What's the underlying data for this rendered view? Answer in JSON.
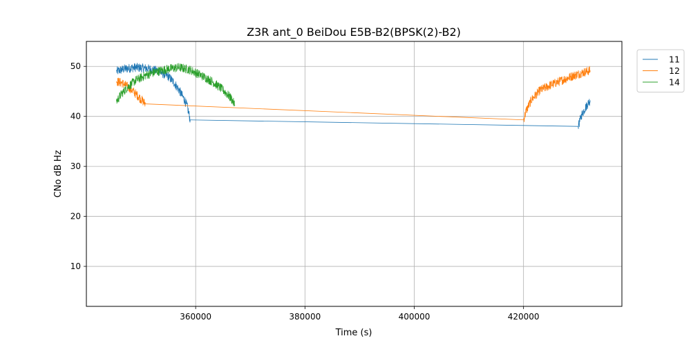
{
  "chart_data": {
    "type": "line",
    "title": "Z3R ant_0 BeiDou E5B-B2(BPSK(2)-B2)",
    "xlabel": "Time (s)",
    "ylabel": "CNo dB Hz",
    "xlim": [
      340000,
      438000
    ],
    "ylim": [
      2,
      55
    ],
    "xticks": [
      360000,
      380000,
      400000,
      420000
    ],
    "yticks": [
      10,
      20,
      30,
      40,
      50
    ],
    "xtick_labels": [
      "360000",
      "380000",
      "400000",
      "420000"
    ],
    "ytick_labels": [
      "10",
      "20",
      "30",
      "40",
      "50"
    ],
    "grid": true,
    "legend_position": "upper right, outside plot",
    "series": [
      {
        "name": "11",
        "color": "#1f77b4",
        "segments": [
          {
            "x": [
              345500,
              347000,
              349000,
              351000,
              353000,
              355000,
              356000,
              357000,
              358000,
              358500,
              359000
            ],
            "y": [
              49.0,
              49.5,
              49.8,
              49.6,
              49.1,
              48.0,
              46.8,
              45.2,
              43.2,
              41.8,
              39.3
            ],
            "noise": 0.9
          },
          {
            "x": [
              359000,
              430000
            ],
            "y": [
              39.3,
              38.0
            ],
            "noise": 0
          },
          {
            "x": [
              430000,
              430600,
              431200,
              431800,
              432200
            ],
            "y": [
              38.0,
              40.2,
              41.5,
              42.6,
              43.2
            ],
            "noise": 0.9
          }
        ]
      },
      {
        "name": "12",
        "color": "#ff7f0e",
        "segments": [
          {
            "x": [
              345500,
              346500,
              347500,
              348500,
              349500,
              350200,
              350800
            ],
            "y": [
              47.0,
              46.7,
              46.0,
              45.1,
              44.0,
              43.2,
              42.5
            ],
            "noise": 0.9
          },
          {
            "x": [
              350800,
              420000
            ],
            "y": [
              42.5,
              39.3
            ],
            "noise": 0
          },
          {
            "x": [
              420000,
              420500,
              421500,
              423000,
              425000,
              427000,
              429000,
              431000,
              432200
            ],
            "y": [
              39.3,
              41.2,
              43.4,
              45.2,
              46.3,
              47.2,
              48.1,
              48.8,
              49.2
            ],
            "noise": 0.9
          }
        ]
      },
      {
        "name": "14",
        "color": "#2ca02c",
        "segments": [
          {
            "x": [
              345500,
              346500,
              347500,
              349000,
              351000,
              353000,
              355000,
              357000,
              359000,
              361000,
              363000,
              365000,
              366500,
              367200
            ],
            "y": [
              43.0,
              44.6,
              45.8,
              47.2,
              48.3,
              49.0,
              49.5,
              49.8,
              49.3,
              48.2,
              47.0,
              45.3,
              43.6,
              42.2
            ],
            "noise": 0.9
          }
        ]
      }
    ]
  }
}
